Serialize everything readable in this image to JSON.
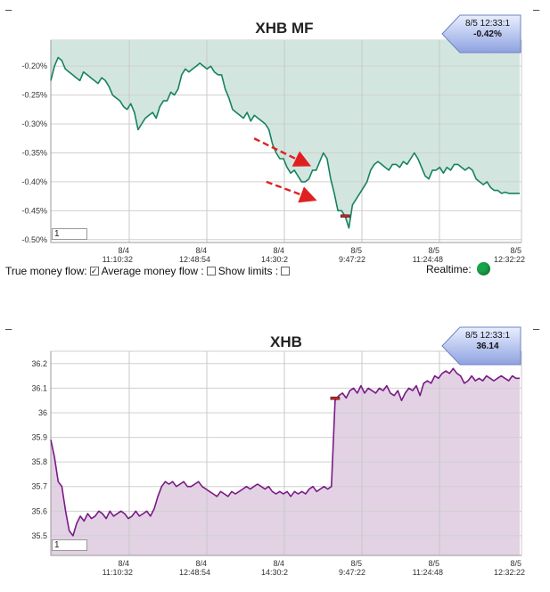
{
  "top": {
    "dash": "–",
    "title": "XHB MF",
    "callout": {
      "time": "8/5 12:33:1",
      "value": "-0.42%"
    },
    "zoom_value": "1",
    "controls": {
      "true_mf_label": "True money flow:",
      "true_mf_checked": true,
      "avg_mf_label": "Average money flow :",
      "avg_mf_checked": false,
      "show_limits_label": "Show limits :",
      "show_limits_checked": false,
      "realtime_label": "Realtime:",
      "realtime_color": "#19a34a"
    }
  },
  "bottom": {
    "dash": "–",
    "title": "XHB",
    "callout": {
      "time": "8/5 12:33:1",
      "value": "36.14"
    },
    "zoom_value": "1"
  },
  "chart_data": [
    {
      "type": "area",
      "title": "XHB MF",
      "line_color": "#17825e",
      "fill_color": "#d2e6df",
      "ylim": [
        -0.505,
        -0.155
      ],
      "y_ticks": [
        "-0.20%",
        "-0.25%",
        "-0.30%",
        "-0.35%",
        "-0.40%",
        "-0.45%",
        "-0.50%"
      ],
      "y_tick_values": [
        -0.2,
        -0.25,
        -0.3,
        -0.35,
        -0.4,
        -0.45,
        -0.5
      ],
      "x_ticks": [
        {
          "date": "8/4",
          "time": "11:10:32"
        },
        {
          "date": "8/4",
          "time": "12:48:54"
        },
        {
          "date": "8/4",
          "time": "14:30:2"
        },
        {
          "date": "8/5",
          "time": "9:47:22"
        },
        {
          "date": "8/5",
          "time": "11:24:48"
        },
        {
          "date": "8/5",
          "time": "12:32:22"
        }
      ],
      "grid": true,
      "series": [
        {
          "values": [
            -0.225,
            -0.2,
            -0.185,
            -0.19,
            -0.205,
            -0.21,
            -0.215,
            -0.22,
            -0.225,
            -0.21,
            -0.215,
            -0.22,
            -0.225,
            -0.23,
            -0.22,
            -0.225,
            -0.235,
            -0.25,
            -0.255,
            -0.26,
            -0.27,
            -0.275,
            -0.265,
            -0.28,
            -0.31,
            -0.3,
            -0.29,
            -0.285,
            -0.28,
            -0.29,
            -0.27,
            -0.26,
            -0.26,
            -0.245,
            -0.25,
            -0.24,
            -0.215,
            -0.205,
            -0.21,
            -0.205,
            -0.2,
            -0.195,
            -0.2,
            -0.205,
            -0.2,
            -0.21,
            -0.215,
            -0.215,
            -0.24,
            -0.255,
            -0.275,
            -0.28,
            -0.285,
            -0.29,
            -0.28,
            -0.295,
            -0.285,
            -0.29,
            -0.295,
            -0.3,
            -0.31,
            -0.335,
            -0.35,
            -0.36,
            -0.36,
            -0.375,
            -0.385,
            -0.38,
            -0.39,
            -0.4,
            -0.4,
            -0.395,
            -0.38,
            -0.38,
            -0.365,
            -0.35,
            -0.36,
            -0.395,
            -0.42,
            -0.45,
            -0.45,
            -0.46,
            -0.48,
            -0.44,
            -0.43,
            -0.42,
            -0.41,
            -0.4,
            -0.38,
            -0.37,
            -0.365,
            -0.37,
            -0.375,
            -0.38,
            -0.37,
            -0.37,
            -0.375,
            -0.365,
            -0.37,
            -0.36,
            -0.35,
            -0.36,
            -0.375,
            -0.39,
            -0.395,
            -0.38,
            -0.38,
            -0.375,
            -0.385,
            -0.375,
            -0.38,
            -0.37,
            -0.37,
            -0.375,
            -0.38,
            -0.375,
            -0.38,
            -0.395,
            -0.4,
            -0.405,
            -0.4,
            -0.41,
            -0.415,
            -0.415,
            -0.42,
            -0.418,
            -0.42,
            -0.42,
            -0.42,
            -0.42
          ]
        }
      ],
      "annotations": {
        "arrow_upper": {
          "from": [
            -0.325,
            0.432
          ],
          "to": [
            -0.37,
            0.545
          ]
        },
        "arrow_lower": {
          "from": [
            -0.4,
            0.458
          ],
          "to": [
            -0.43,
            0.557
          ]
        }
      }
    },
    {
      "type": "area",
      "title": "XHB",
      "line_color": "#7a1a86",
      "fill_color": "#e2d2e4",
      "ylim": [
        35.42,
        36.25
      ],
      "y_ticks": [
        "36.2",
        "36.1",
        "36",
        "35.9",
        "35.8",
        "35.7",
        "35.6",
        "35.5"
      ],
      "y_tick_values": [
        36.2,
        36.1,
        36.0,
        35.9,
        35.8,
        35.7,
        35.6,
        35.5
      ],
      "x_ticks": [
        {
          "date": "8/4",
          "time": "11:10:32"
        },
        {
          "date": "8/4",
          "time": "12:48:54"
        },
        {
          "date": "8/4",
          "time": "14:30:2"
        },
        {
          "date": "8/5",
          "time": "9:47:22"
        },
        {
          "date": "8/5",
          "time": "11:24:48"
        },
        {
          "date": "8/5",
          "time": "12:32:22"
        }
      ],
      "grid": true,
      "series": [
        {
          "values": [
            35.89,
            35.82,
            35.72,
            35.7,
            35.6,
            35.52,
            35.5,
            35.55,
            35.58,
            35.56,
            35.59,
            35.57,
            35.58,
            35.6,
            35.59,
            35.57,
            35.6,
            35.58,
            35.59,
            35.6,
            35.59,
            35.57,
            35.58,
            35.6,
            35.58,
            35.59,
            35.6,
            35.58,
            35.61,
            35.66,
            35.7,
            35.72,
            35.71,
            35.72,
            35.7,
            35.71,
            35.72,
            35.7,
            35.7,
            35.71,
            35.72,
            35.7,
            35.69,
            35.68,
            35.67,
            35.66,
            35.68,
            35.67,
            35.66,
            35.68,
            35.67,
            35.68,
            35.69,
            35.7,
            35.69,
            35.7,
            35.71,
            35.7,
            35.69,
            35.7,
            35.68,
            35.67,
            35.68,
            35.67,
            35.68,
            35.66,
            35.68,
            35.67,
            35.68,
            35.67,
            35.69,
            35.7,
            35.68,
            35.69,
            35.7,
            35.69,
            35.7,
            36.05,
            36.07,
            36.08,
            36.06,
            36.09,
            36.1,
            36.08,
            36.11,
            36.08,
            36.1,
            36.09,
            36.08,
            36.1,
            36.09,
            36.11,
            36.08,
            36.07,
            36.09,
            36.05,
            36.08,
            36.1,
            36.09,
            36.11,
            36.07,
            36.12,
            36.13,
            36.12,
            36.15,
            36.14,
            36.16,
            36.17,
            36.16,
            36.18,
            36.16,
            36.15,
            36.12,
            36.13,
            36.15,
            36.13,
            36.14,
            36.13,
            36.15,
            36.14,
            36.13,
            36.14,
            36.15,
            36.14,
            36.13,
            36.15,
            36.14,
            36.14
          ]
        }
      ]
    }
  ]
}
